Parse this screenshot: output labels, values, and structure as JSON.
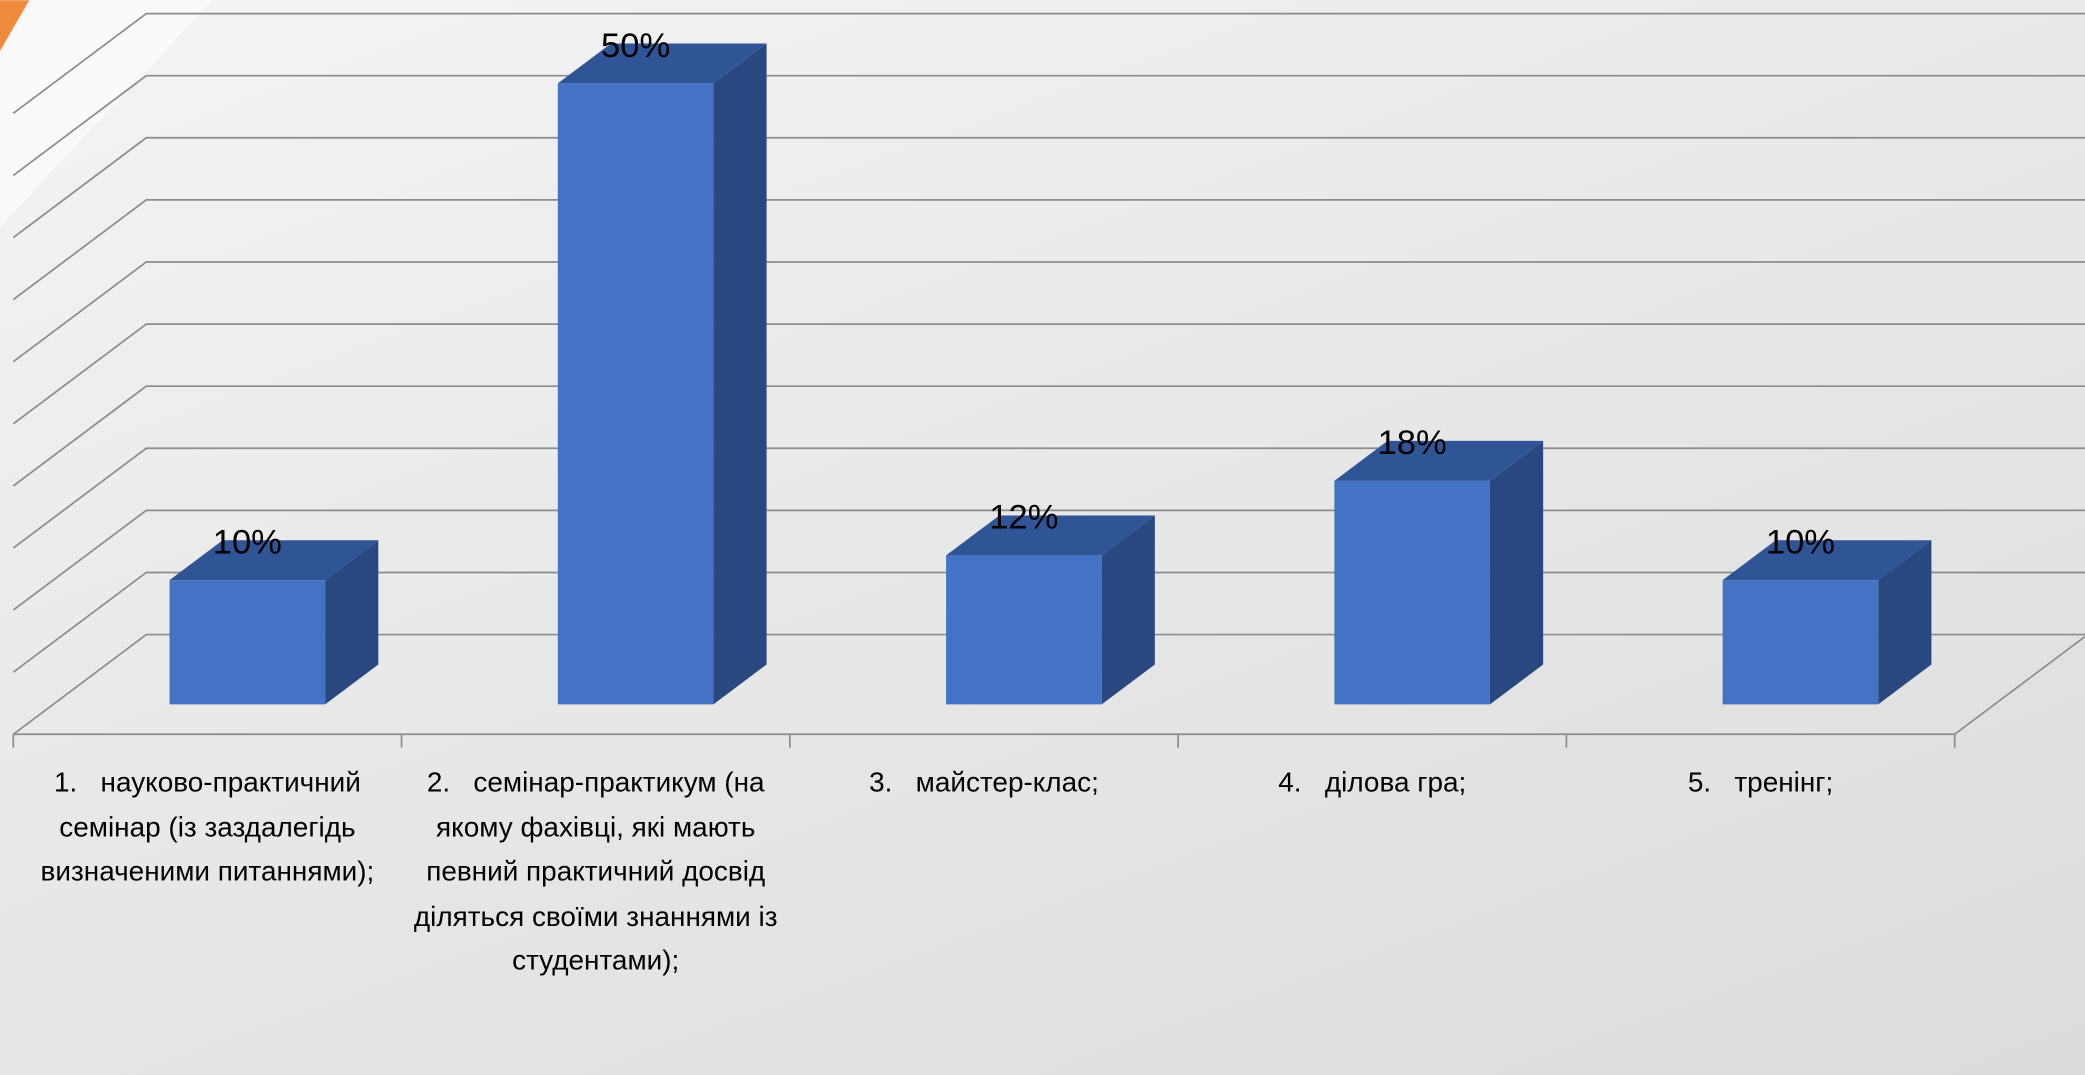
{
  "chart_data": {
    "type": "bar",
    "categories": [
      "1.\tнауково-практичний семінар (із заздалегідь визначеними питаннями);",
      "2.\tсемінар-практикум (на якому фахівці, які мають певний практичний досвід діляться своїми знаннями із студентами);",
      "3.\tмайстер-клас;",
      "4.\tділова гра;",
      "5.\tтренінг;"
    ],
    "values": [
      10,
      50,
      12,
      18,
      10
    ],
    "value_labels": [
      "10%",
      "50%",
      "12%",
      "18%",
      "10%"
    ],
    "color": "#4472c4",
    "ylim": [
      0,
      50
    ],
    "yticks": [
      0,
      5,
      10,
      15,
      20,
      25,
      30,
      35,
      40,
      45,
      50
    ],
    "grid": true
  }
}
